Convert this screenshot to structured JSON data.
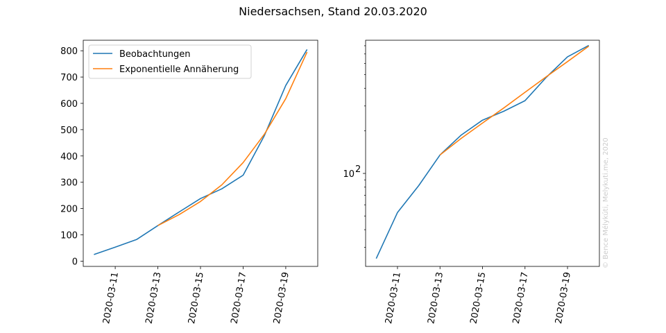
{
  "suptitle": "Niedersachsen, Stand 20.03.2020",
  "watermark": "© Bence Mélykúti, Melykuti.me, 2020",
  "colors": {
    "observed": "#1f77b4",
    "fit": "#ff7f0e"
  },
  "chart_data": [
    {
      "type": "line",
      "yscale": "linear",
      "ylim": [
        -20,
        840
      ],
      "yticks": [
        0,
        100,
        200,
        300,
        400,
        500,
        600,
        700,
        800
      ],
      "xlim": [
        "2020-03-09T12:00",
        "2020-03-20T12:00"
      ],
      "xticks": [
        "2020-03-11",
        "2020-03-13",
        "2020-03-15",
        "2020-03-17",
        "2020-03-19"
      ],
      "legend_position": "upper-left",
      "series": [
        {
          "name": "Beobachtungen",
          "x": [
            "2020-03-10",
            "2020-03-11",
            "2020-03-12",
            "2020-03-13",
            "2020-03-14",
            "2020-03-15",
            "2020-03-16",
            "2020-03-17",
            "2020-03-18",
            "2020-03-19",
            "2020-03-20"
          ],
          "values": [
            25,
            53,
            82,
            135,
            187,
            238,
            275,
            327,
            478,
            668,
            805
          ]
        },
        {
          "name": "Exponentielle Annäherung",
          "x": [
            "2020-03-13",
            "2020-03-14",
            "2020-03-15",
            "2020-03-16",
            "2020-03-17",
            "2020-03-18",
            "2020-03-19",
            "2020-03-20"
          ],
          "values": [
            135,
            177,
            227,
            290,
            375,
            483,
            618,
            795
          ]
        }
      ]
    },
    {
      "type": "line",
      "yscale": "log",
      "ylim": [
        22,
        875
      ],
      "yticks": [
        100
      ],
      "ytick_labels": [
        {
          "base": "10",
          "exp": "2"
        }
      ],
      "xlim": [
        "2020-03-09T12:00",
        "2020-03-20T12:00"
      ],
      "xticks": [
        "2020-03-11",
        "2020-03-13",
        "2020-03-15",
        "2020-03-17",
        "2020-03-19"
      ],
      "series": [
        {
          "x": [
            "2020-03-10",
            "2020-03-11",
            "2020-03-12",
            "2020-03-13",
            "2020-03-14",
            "2020-03-15",
            "2020-03-16",
            "2020-03-17",
            "2020-03-18",
            "2020-03-19",
            "2020-03-20"
          ],
          "values": [
            25,
            53,
            82,
            135,
            187,
            238,
            275,
            327,
            478,
            668,
            805
          ]
        },
        {
          "x": [
            "2020-03-13",
            "2020-03-14",
            "2020-03-15",
            "2020-03-16",
            "2020-03-17",
            "2020-03-18",
            "2020-03-19",
            "2020-03-20"
          ],
          "values": [
            135,
            177,
            227,
            290,
            375,
            483,
            618,
            795
          ]
        }
      ]
    }
  ]
}
